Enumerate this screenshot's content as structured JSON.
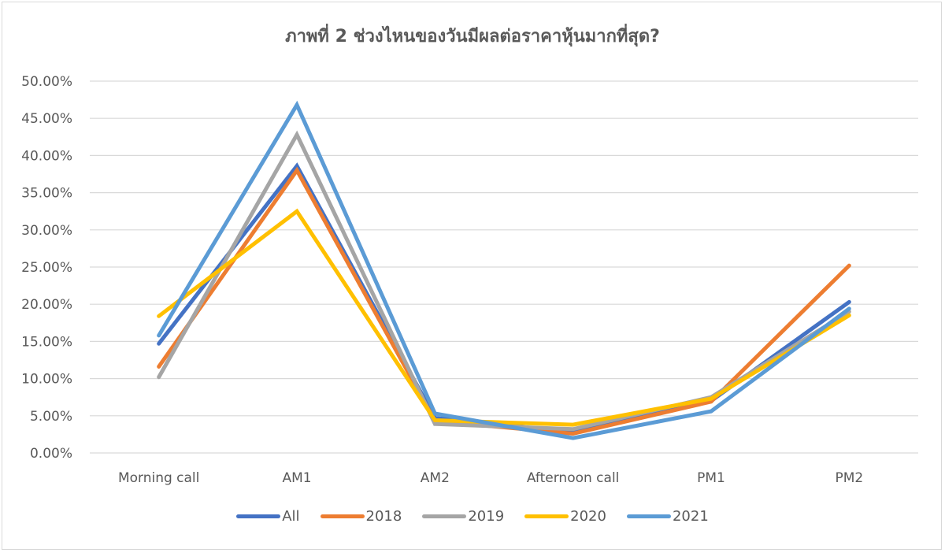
{
  "chart_data": {
    "type": "line",
    "title": "ภาพที่ 2 ช่วงไหนของวันมีผลต่อราคาหุ้นมากที่สุด?",
    "xlabel": "",
    "ylabel": "",
    "ylim": [
      0,
      0.5
    ],
    "yticks": [
      "0.00%",
      "5.00%",
      "10.00%",
      "15.00%",
      "20.00%",
      "25.00%",
      "30.00%",
      "35.00%",
      "40.00%",
      "45.00%",
      "50.00%"
    ],
    "grid": true,
    "legend_position": "bottom",
    "categories": [
      "Morning call",
      "AM1",
      "AM2",
      "Afternoon call",
      "PM1",
      "PM2"
    ],
    "series": [
      {
        "name": "All",
        "color": "#4472C4",
        "values": [
          0.147,
          0.386,
          0.047,
          0.028,
          0.07,
          0.203
        ]
      },
      {
        "name": "2018",
        "color": "#ED7D31",
        "values": [
          0.116,
          0.38,
          0.043,
          0.026,
          0.069,
          0.252
        ]
      },
      {
        "name": "2019",
        "color": "#A5A5A5",
        "values": [
          0.102,
          0.428,
          0.039,
          0.032,
          0.075,
          0.19
        ]
      },
      {
        "name": "2020",
        "color": "#FFC000",
        "values": [
          0.184,
          0.325,
          0.044,
          0.038,
          0.073,
          0.185
        ]
      },
      {
        "name": "2021",
        "color": "#5B9BD5",
        "values": [
          0.158,
          0.468,
          0.053,
          0.02,
          0.056,
          0.194
        ]
      }
    ]
  }
}
